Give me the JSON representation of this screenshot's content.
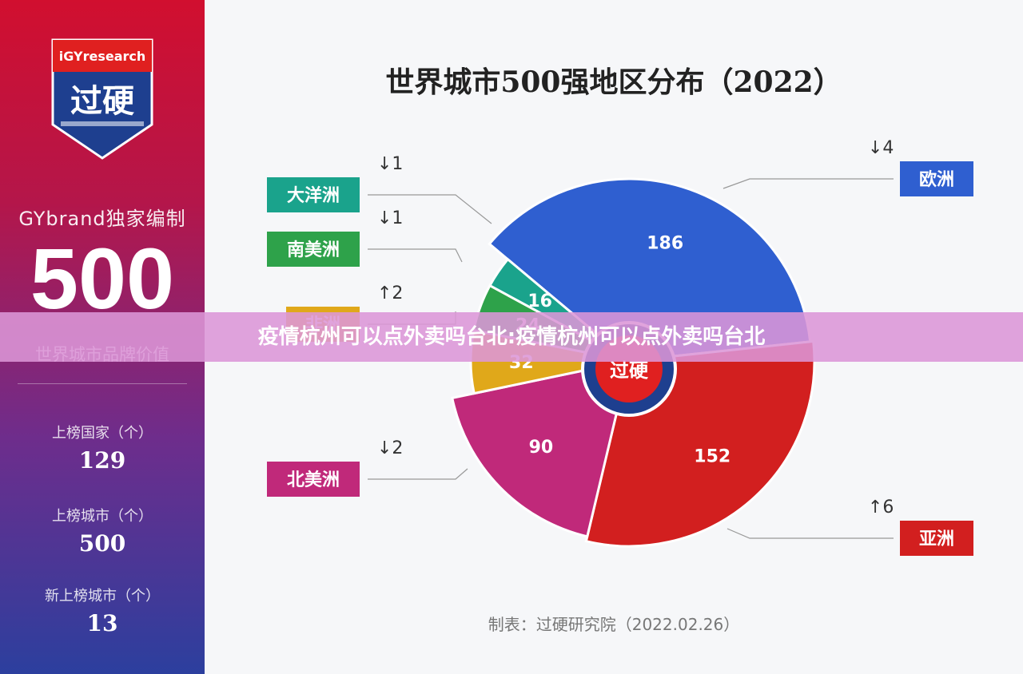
{
  "sidebar": {
    "logo_text": "iGYresearch",
    "logo_main": "过硬",
    "brand_line": "GYbrand独家编制",
    "big_number": "500",
    "big_caption": "世界城市品牌价值",
    "stats": [
      {
        "label": "上榜国家（个）",
        "value": "129"
      },
      {
        "label": "上榜城市（个）",
        "value": "500"
      },
      {
        "label": "新上榜城市（个）",
        "value": "13"
      }
    ]
  },
  "credit": "制表：过硬研究院（2022.02.26）",
  "banner": "疫情杭州可以点外卖吗台北:疫情杭州可以点外卖吗台北",
  "center_logo_text": "过硬",
  "colors": {
    "europe": "#2f5fd0",
    "asia": "#d21f1f",
    "north_america": "#c0297a",
    "africa": "#e0a81a",
    "south_america": "#2ea24a",
    "oceania": "#1aa38c"
  },
  "chart_data": {
    "type": "pie",
    "title": "世界城市500强地区分布（2022）",
    "slices": [
      {
        "name": "欧洲",
        "value": 186,
        "change": "↓4",
        "color": "#2f5fd0"
      },
      {
        "name": "亚洲",
        "value": 152,
        "change": "↑6",
        "color": "#d21f1f"
      },
      {
        "name": "北美洲",
        "value": 90,
        "change": "↓2",
        "color": "#c0297a"
      },
      {
        "name": "非洲",
        "value": 32,
        "change": "↑2",
        "color": "#e0a81a"
      },
      {
        "name": "南美洲",
        "value": 24,
        "change": "↓1",
        "color": "#2ea24a"
      },
      {
        "name": "大洋洲",
        "value": 16,
        "change": "↓1",
        "color": "#1aa38c"
      }
    ]
  }
}
